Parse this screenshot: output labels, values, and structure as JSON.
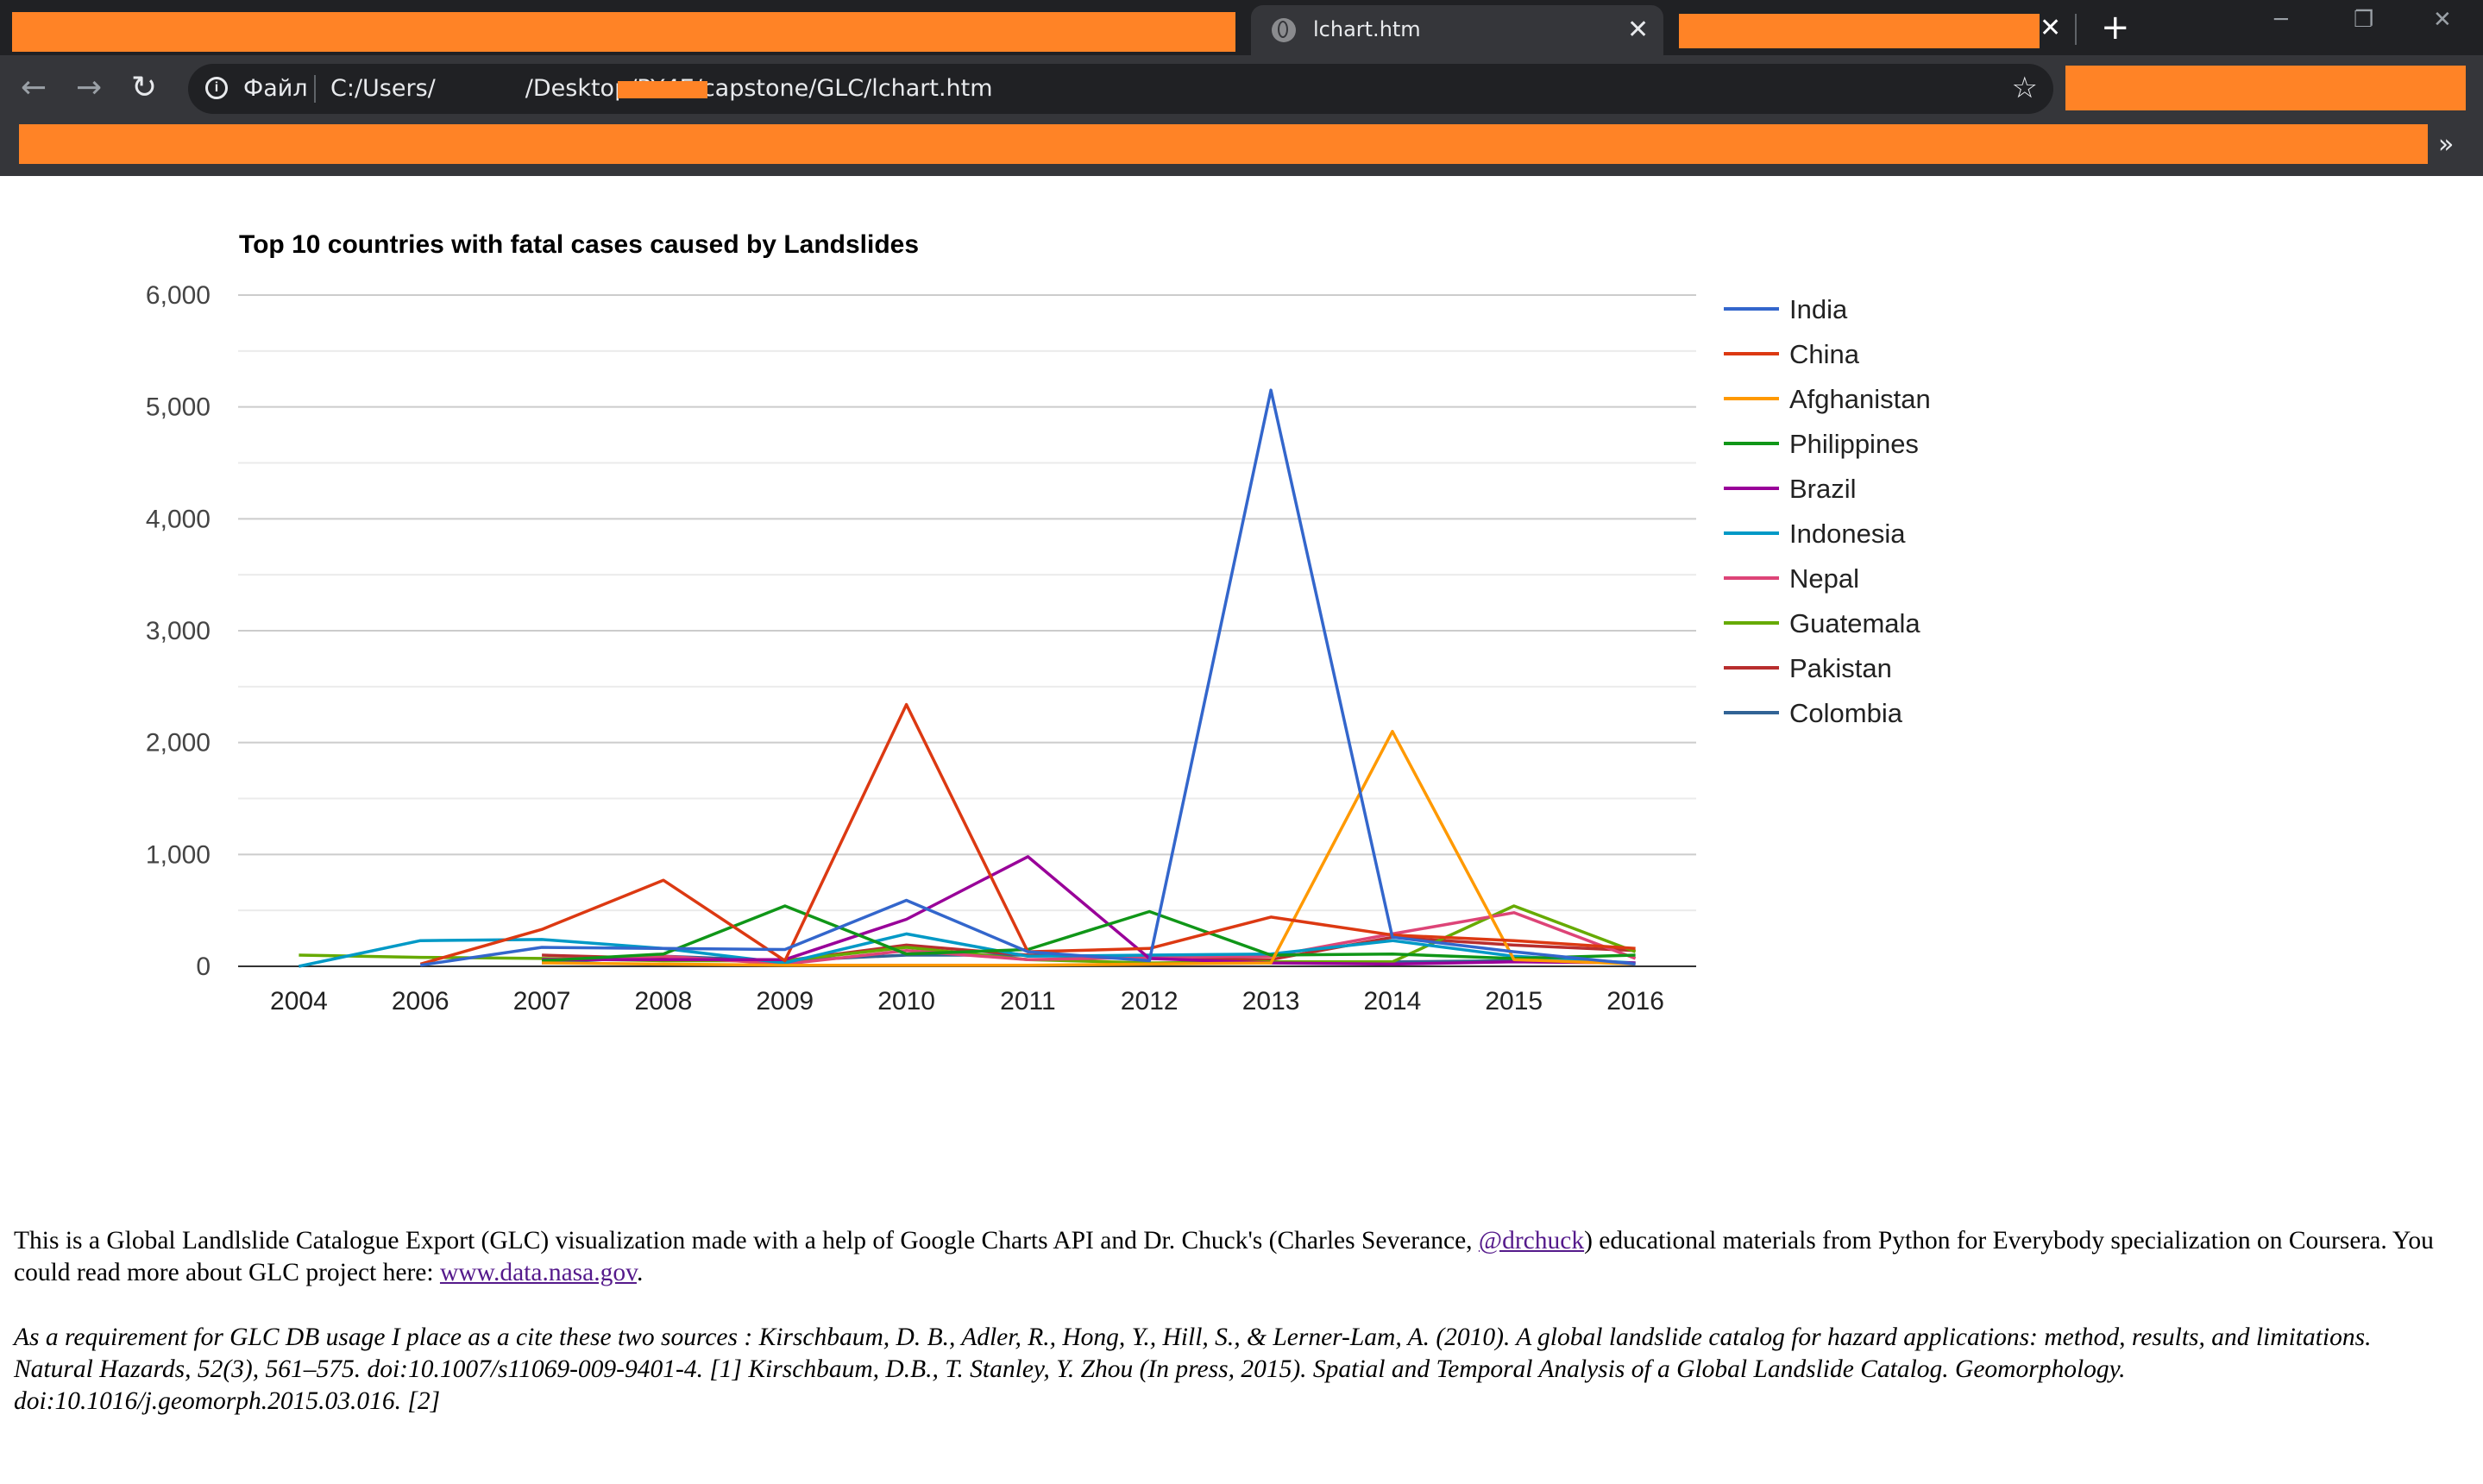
{
  "browser": {
    "tab_title": "lchart.htm",
    "close_symbol": "✕",
    "new_tab_symbol": "+",
    "window_buttons": {
      "minimize": "─",
      "restore": "❐",
      "close": "✕"
    },
    "nav": {
      "back": "←",
      "forward": "→",
      "reload": "↻"
    },
    "address": {
      "info_icon": "i",
      "scheme_label": "Файл",
      "url_prefix": "C:/Users/",
      "url_suffix": "/Desktop/PY4E/capstone/GLC/lchart.htm"
    },
    "star_icon": "☆",
    "bookmarks_more": "»",
    "redaction_color": "#ff8326"
  },
  "chart_data": {
    "type": "line",
    "title": "Top 10 countries with fatal cases caused by Landslides",
    "categories": [
      "2004",
      "2006",
      "2007",
      "2008",
      "2009",
      "2010",
      "2011",
      "2012",
      "2013",
      "2014",
      "2015",
      "2016"
    ],
    "ylim": [
      0,
      6000
    ],
    "yticks": [
      0,
      1000,
      2000,
      3000,
      4000,
      5000,
      6000
    ],
    "ytick_labels": [
      "0",
      "1,000",
      "2,000",
      "3,000",
      "4,000",
      "5,000",
      "6,000"
    ],
    "grid": true,
    "legend_position": "right",
    "series": [
      {
        "name": "India",
        "color": "#3366cc",
        "values": [
          null,
          10,
          170,
          160,
          150,
          590,
          130,
          50,
          5150,
          260,
          130,
          20
        ]
      },
      {
        "name": "China",
        "color": "#dc3912",
        "values": [
          null,
          20,
          330,
          770,
          50,
          2340,
          130,
          160,
          440,
          280,
          230,
          160
        ]
      },
      {
        "name": "Afghanistan",
        "color": "#ff9900",
        "values": [
          null,
          null,
          30,
          20,
          10,
          10,
          10,
          20,
          30,
          2100,
          60,
          20
        ]
      },
      {
        "name": "Philippines",
        "color": "#109618",
        "values": [
          null,
          null,
          50,
          110,
          540,
          110,
          150,
          490,
          100,
          110,
          70,
          100
        ]
      },
      {
        "name": "Brazil",
        "color": "#990099",
        "values": [
          null,
          null,
          60,
          60,
          60,
          420,
          980,
          70,
          30,
          20,
          40,
          30
        ]
      },
      {
        "name": "Indonesia",
        "color": "#0099c6",
        "values": [
          0,
          230,
          240,
          160,
          30,
          290,
          90,
          100,
          110,
          230,
          90,
          30
        ]
      },
      {
        "name": "Nepal",
        "color": "#dd4477",
        "values": [
          null,
          null,
          60,
          90,
          20,
          140,
          60,
          80,
          90,
          290,
          480,
          70
        ]
      },
      {
        "name": "Guatemala",
        "color": "#66aa00",
        "values": [
          100,
          80,
          70,
          50,
          50,
          170,
          60,
          30,
          40,
          40,
          540,
          130
        ]
      },
      {
        "name": "Pakistan",
        "color": "#b82e2e",
        "values": [
          null,
          null,
          100,
          70,
          50,
          190,
          100,
          70,
          60,
          260,
          190,
          140
        ]
      },
      {
        "name": "Colombia",
        "color": "#316395",
        "values": [
          null,
          null,
          30,
          90,
          50,
          100,
          100,
          80,
          40,
          40,
          50,
          30
        ]
      }
    ]
  },
  "footer": {
    "p1_text1": "This is a Global Landlslide Catalogue Export (GLC) visualization made with a help of Google Charts API and Dr. Chuck's (Charles Severance, ",
    "p1_link1": "@drchuck",
    "p1_text2": ") educational materials from Python for Everybody specialization on Coursera. You could read more about GLC project here: ",
    "p1_link2": "www.data.nasa.gov",
    "p1_text3": ".",
    "p2_text": "As a requirement for GLC DB usage I place as a cite these two sources : Kirschbaum, D. B., Adler, R., Hong, Y., Hill, S., & Lerner-Lam, A. (2010). A global landslide catalog for hazard applications: method, results, and limitations. Natural Hazards, 52(3), 561–575. doi:10.1007/s11069-009-9401-4. [1] Kirschbaum, D.B., T. Stanley, Y. Zhou (In press, 2015). Spatial and Temporal Analysis of a Global Landslide Catalog. Geomorphology. doi:10.1016/j.geomorph.2015.03.016. [2]"
  }
}
